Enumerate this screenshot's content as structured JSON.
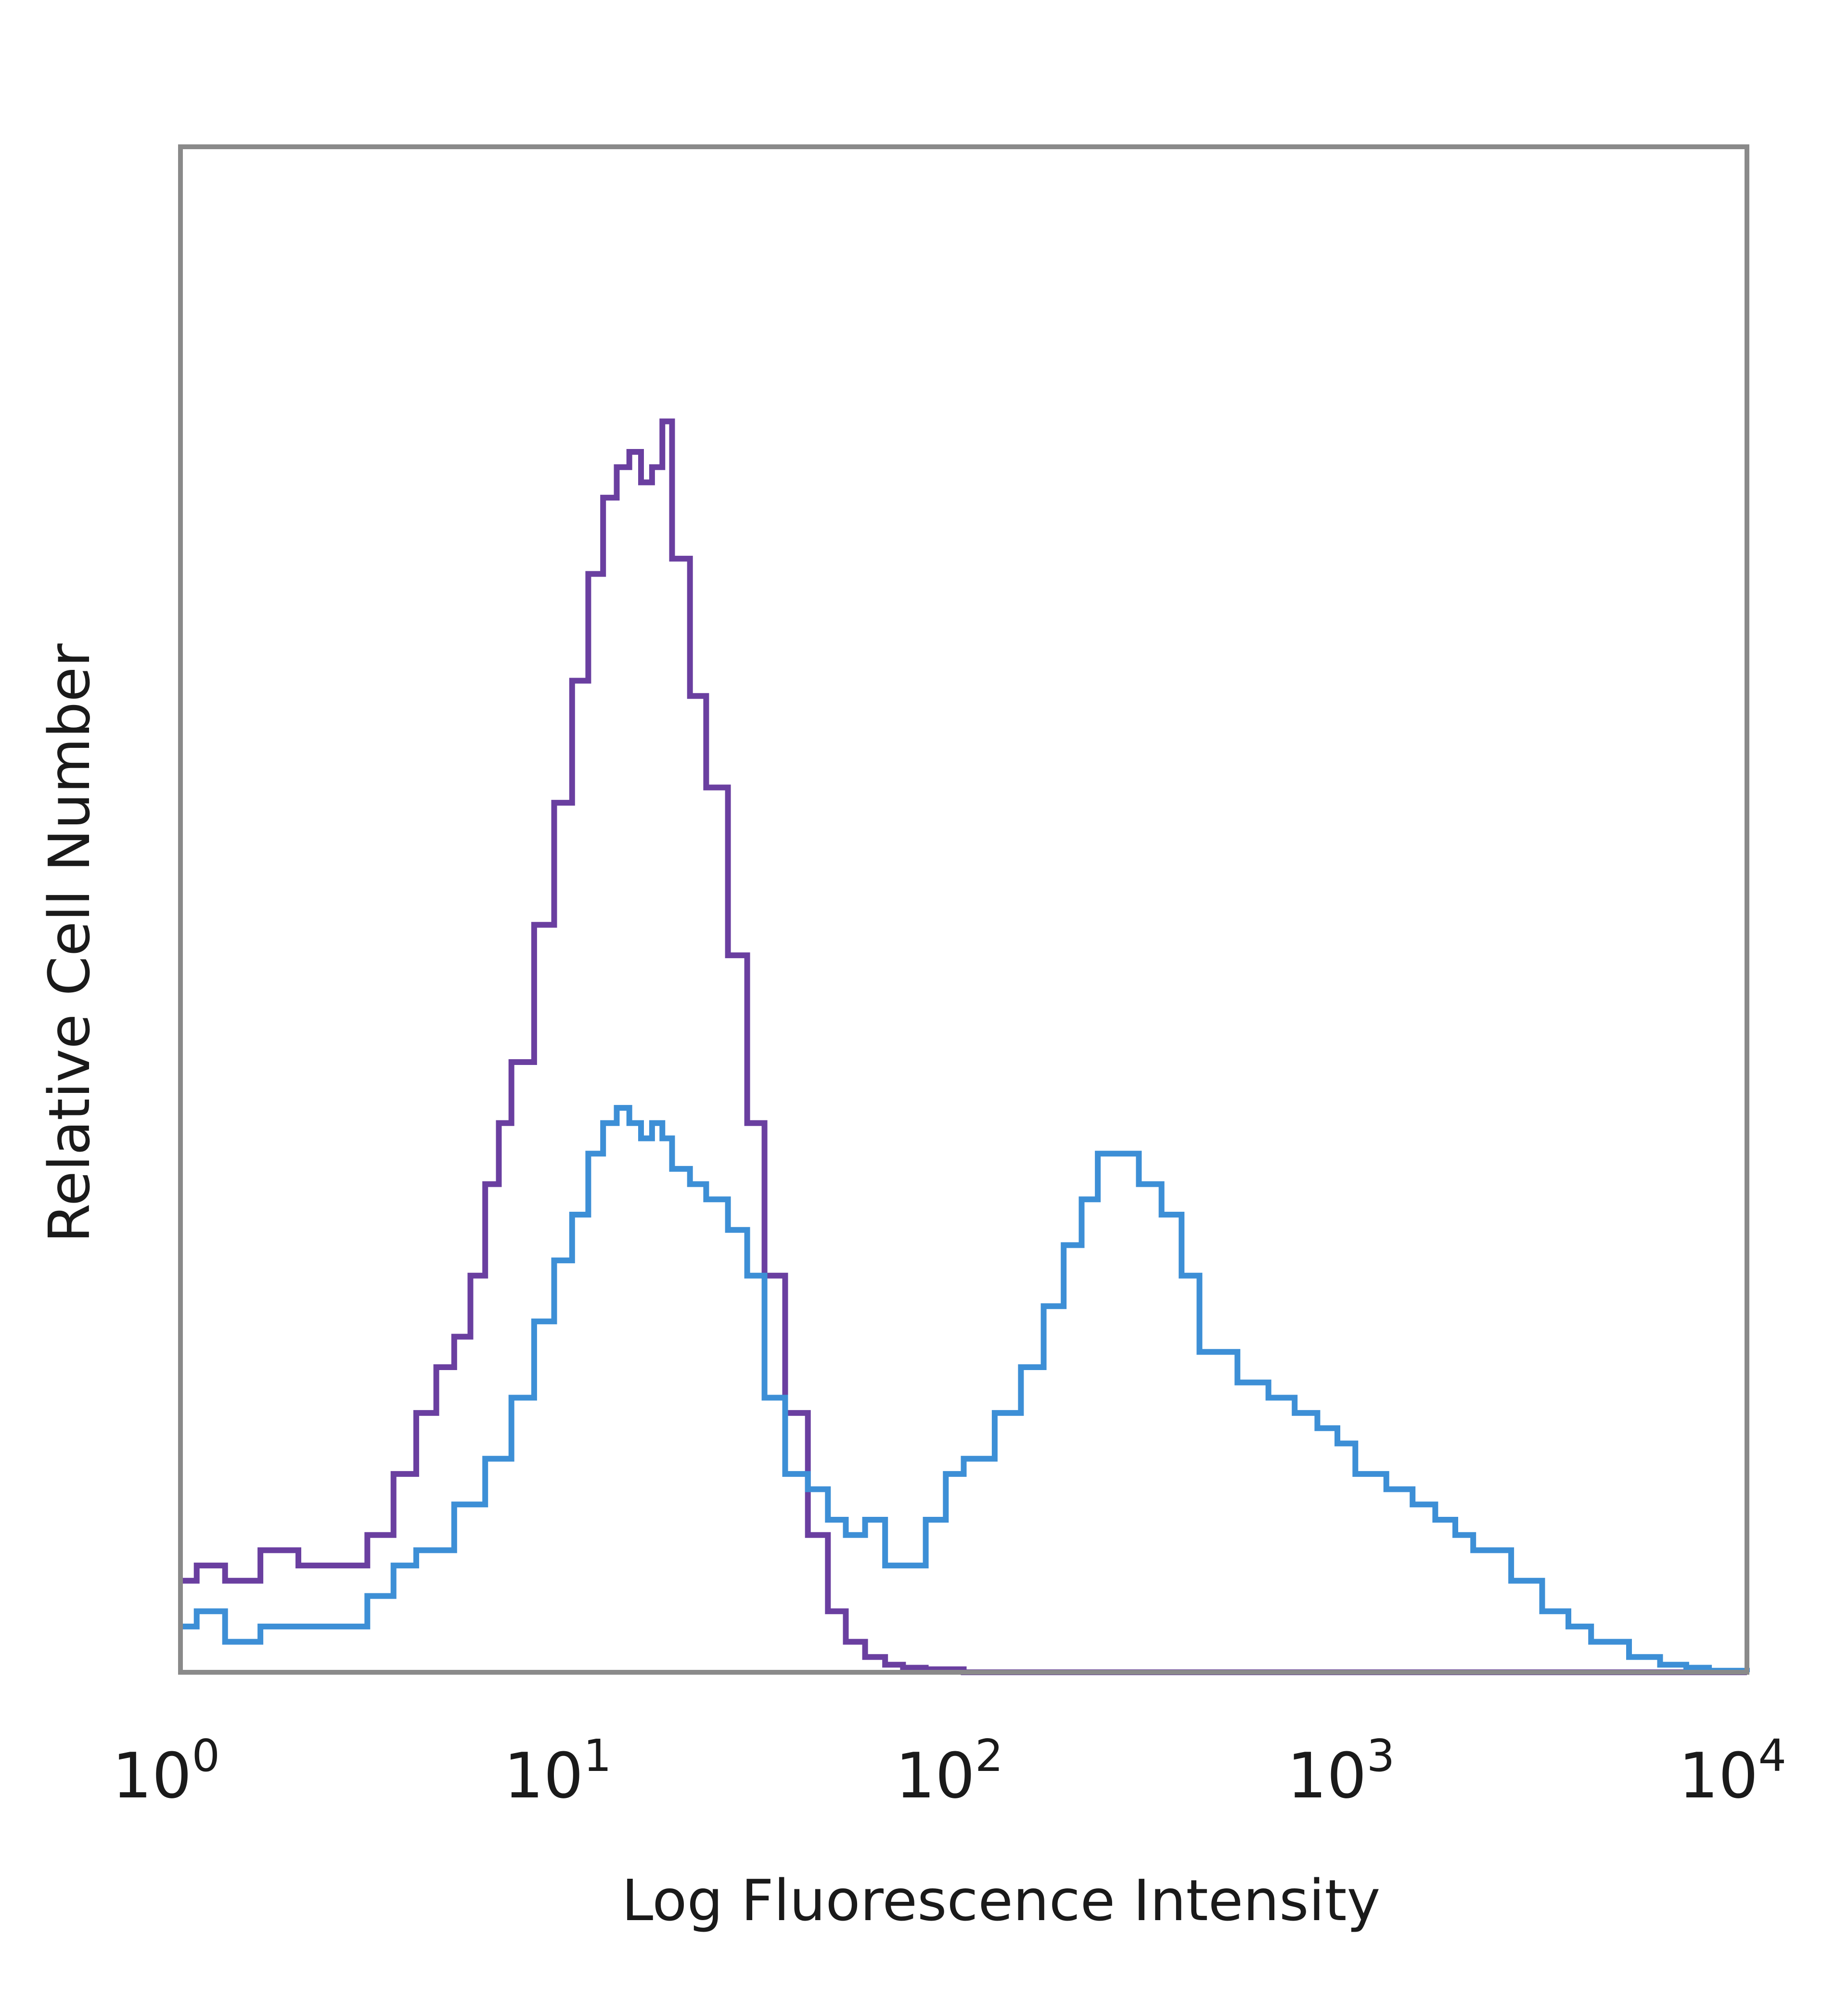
{
  "chart_data": {
    "type": "line",
    "xscale": "log",
    "xlim": [
      1,
      10000
    ],
    "ylim": [
      0,
      1
    ],
    "xlabel": "Log Fluorescence Intensity",
    "ylabel": "Relative Cell Number",
    "grid": false,
    "x_ticks": [
      {
        "base": "10",
        "exp": "0",
        "value": 1
      },
      {
        "base": "10",
        "exp": "1",
        "value": 10
      },
      {
        "base": "10",
        "exp": "2",
        "value": 100
      },
      {
        "base": "10",
        "exp": "3",
        "value": 1000
      },
      {
        "base": "10",
        "exp": "4",
        "value": 10000
      }
    ],
    "series": [
      {
        "color": "#6a3fa0",
        "x": [
          1.0,
          1.1,
          1.3,
          1.6,
          2.0,
          2.5,
          3.0,
          3.5,
          4.0,
          4.5,
          5.0,
          5.5,
          6.0,
          6.5,
          7.0,
          8.0,
          9.0,
          10.0,
          11.0,
          12.0,
          13.0,
          14.0,
          15.0,
          16.0,
          17.0,
          18.0,
          20.0,
          22.0,
          25.0,
          28.0,
          31.0,
          35.0,
          40.0,
          45.0,
          50.0,
          56.0,
          63.0,
          70.0,
          80.0,
          100.0,
          200.0,
          500.0,
          1000.0,
          5000.0,
          10000.0
        ],
        "y": [
          0.06,
          0.07,
          0.06,
          0.08,
          0.07,
          0.07,
          0.09,
          0.13,
          0.17,
          0.2,
          0.22,
          0.26,
          0.32,
          0.36,
          0.4,
          0.49,
          0.57,
          0.65,
          0.72,
          0.77,
          0.79,
          0.8,
          0.78,
          0.79,
          0.82,
          0.73,
          0.64,
          0.58,
          0.47,
          0.36,
          0.26,
          0.17,
          0.09,
          0.04,
          0.02,
          0.01,
          0.005,
          0.003,
          0.002,
          0.0,
          0.0,
          0.0,
          0.0,
          0.0,
          0.0
        ]
      },
      {
        "color": "#3d8fd6",
        "x": [
          1.0,
          1.1,
          1.3,
          1.6,
          2.0,
          2.5,
          3.0,
          3.5,
          4.0,
          5.0,
          6.0,
          7.0,
          8.0,
          9.0,
          10.0,
          11.0,
          12.0,
          13.0,
          14.0,
          15.0,
          16.0,
          17.0,
          18.0,
          20.0,
          22.0,
          25.0,
          28.0,
          31.0,
          35.0,
          40.0,
          45.0,
          50.0,
          56.0,
          63.0,
          70.0,
          80.0,
          90.0,
          100.0,
          120.0,
          140.0,
          160.0,
          180.0,
          200.0,
          220.0,
          250.0,
          280.0,
          320.0,
          360.0,
          400.0,
          500.0,
          600.0,
          700.0,
          800.0,
          900.0,
          1000.0,
          1200.0,
          1400.0,
          1600.0,
          1800.0,
          2000.0,
          2500.0,
          3000.0,
          3500.0,
          4000.0,
          5000.0,
          6000.0,
          7000.0,
          8000.0,
          10000.0
        ],
        "y": [
          0.03,
          0.04,
          0.02,
          0.03,
          0.03,
          0.03,
          0.05,
          0.07,
          0.08,
          0.11,
          0.14,
          0.18,
          0.23,
          0.27,
          0.3,
          0.34,
          0.36,
          0.37,
          0.36,
          0.35,
          0.36,
          0.35,
          0.33,
          0.32,
          0.31,
          0.29,
          0.26,
          0.18,
          0.13,
          0.12,
          0.1,
          0.09,
          0.1,
          0.07,
          0.07,
          0.1,
          0.13,
          0.14,
          0.17,
          0.2,
          0.24,
          0.28,
          0.31,
          0.34,
          0.34,
          0.32,
          0.3,
          0.26,
          0.21,
          0.19,
          0.18,
          0.17,
          0.16,
          0.15,
          0.13,
          0.12,
          0.11,
          0.1,
          0.09,
          0.08,
          0.06,
          0.04,
          0.03,
          0.02,
          0.01,
          0.005,
          0.003,
          0.001,
          0.0
        ]
      }
    ]
  }
}
